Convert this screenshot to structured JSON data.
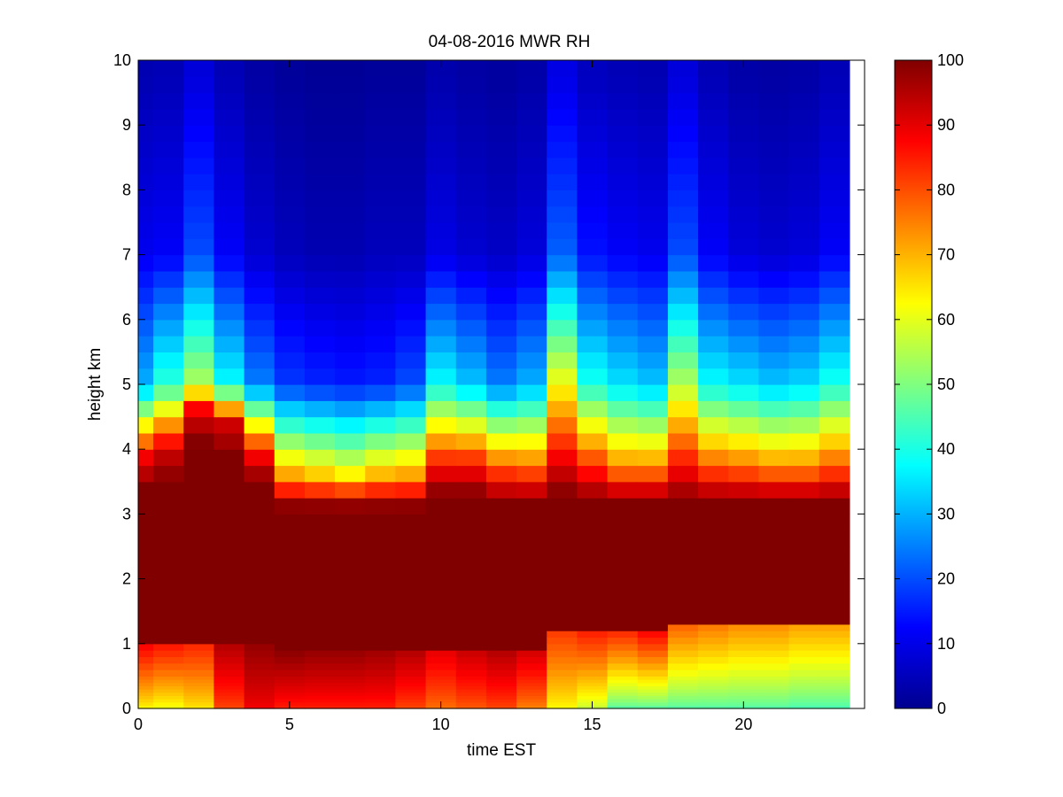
{
  "chart_data": [
    {
      "type": "heatmap",
      "title": "04-08-2016 MWR RH",
      "xlabel": "time EST",
      "ylabel": "height km",
      "xlim": [
        0,
        24
      ],
      "ylim": [
        0,
        10
      ],
      "x_ticks": [
        "0",
        "5",
        "10",
        "15",
        "20"
      ],
      "y_ticks": [
        "0",
        "1",
        "2",
        "3",
        "4",
        "5",
        "6",
        "7",
        "8",
        "9",
        "10"
      ],
      "x_centers": [
        0,
        1,
        2,
        3,
        4,
        5,
        6,
        7,
        8,
        9,
        10,
        11,
        12,
        13,
        14,
        15,
        16,
        17,
        18,
        19,
        20,
        21,
        22,
        23
      ],
      "x_data_max": 23.5,
      "heights_km": [
        0,
        0.05,
        0.1,
        0.15,
        0.2,
        0.25,
        0.3,
        0.35,
        0.4,
        0.45,
        0.5,
        0.6,
        0.7,
        0.8,
        0.9,
        1.0,
        1.1,
        1.2,
        1.3,
        1.4,
        1.5,
        1.6,
        1.7,
        1.8,
        1.9,
        2.0,
        2.25,
        2.5,
        2.75,
        3.0,
        3.25,
        3.5,
        3.75,
        4.0,
        4.25,
        4.5,
        4.75,
        5.0,
        5.25,
        5.5,
        5.75,
        6.0,
        6.25,
        6.5,
        6.75,
        7.0,
        7.25,
        7.5,
        7.75,
        8.0,
        8.25,
        8.5,
        8.75,
        9.0,
        9.25,
        9.5,
        9.75
      ],
      "rh_profiles": [
        {
          "time": 0,
          "sfc": 62,
          "low": 88,
          "bottom": 1.0,
          "top": 3.4,
          "above": 88,
          "p50": 30,
          "p70": 11
        },
        {
          "time": 1,
          "sfc": 60,
          "low": 86,
          "bottom": 1.0,
          "top": 3.5,
          "above": 92,
          "p50": 42,
          "p70": 12
        },
        {
          "time": 2,
          "sfc": 64,
          "low": 84,
          "bottom": 1.0,
          "top": 4.1,
          "above": 90,
          "p50": 55,
          "p70": 20
        },
        {
          "time": 3,
          "sfc": 80,
          "low": 95,
          "bottom": 1.0,
          "top": 3.9,
          "above": 92,
          "p50": 38,
          "p70": 12
        },
        {
          "time": 4,
          "sfc": 88,
          "low": 98,
          "bottom": 1.0,
          "top": 3.5,
          "above": 85,
          "p50": 25,
          "p70": 8
        },
        {
          "time": 5,
          "sfc": 84,
          "low": 99,
          "bottom": 0.9,
          "top": 3.1,
          "above": 72,
          "p50": 18,
          "p70": 6
        },
        {
          "time": 6,
          "sfc": 84,
          "low": 98,
          "bottom": 0.9,
          "top": 3.1,
          "above": 68,
          "p50": 16,
          "p70": 5
        },
        {
          "time": 7,
          "sfc": 84,
          "low": 98,
          "bottom": 0.9,
          "top": 3.1,
          "above": 64,
          "p50": 15,
          "p70": 5
        },
        {
          "time": 8,
          "sfc": 84,
          "low": 97,
          "bottom": 0.9,
          "top": 3.1,
          "above": 70,
          "p50": 16,
          "p70": 6
        },
        {
          "time": 9,
          "sfc": 80,
          "low": 95,
          "bottom": 0.9,
          "top": 3.1,
          "above": 72,
          "p50": 20,
          "p70": 6
        },
        {
          "time": 10,
          "sfc": 76,
          "low": 90,
          "bottom": 0.9,
          "top": 3.3,
          "above": 85,
          "p50": 38,
          "p70": 10
        },
        {
          "time": 11,
          "sfc": 78,
          "low": 93,
          "bottom": 0.9,
          "top": 3.3,
          "above": 85,
          "p50": 32,
          "p70": 8
        },
        {
          "time": 12,
          "sfc": 80,
          "low": 95,
          "bottom": 0.9,
          "top": 3.2,
          "above": 80,
          "p50": 25,
          "p70": 7
        },
        {
          "time": 13,
          "sfc": 74,
          "low": 92,
          "bottom": 0.9,
          "top": 3.2,
          "above": 78,
          "p50": 30,
          "p70": 9
        },
        {
          "time": 14,
          "sfc": 62,
          "low": 82,
          "bottom": 1.2,
          "top": 3.3,
          "above": 90,
          "p50": 62,
          "p70": 22
        },
        {
          "time": 15,
          "sfc": 56,
          "low": 85,
          "bottom": 1.2,
          "top": 3.2,
          "above": 85,
          "p50": 40,
          "p70": 14
        },
        {
          "time": 16,
          "sfc": 45,
          "low": 84,
          "bottom": 1.2,
          "top": 3.2,
          "above": 75,
          "p50": 35,
          "p70": 12
        },
        {
          "time": 17,
          "sfc": 45,
          "low": 88,
          "bottom": 1.2,
          "top": 3.2,
          "above": 75,
          "p50": 32,
          "p70": 11
        },
        {
          "time": 18,
          "sfc": 45,
          "low": 78,
          "bottom": 1.3,
          "top": 3.2,
          "above": 88,
          "p50": 55,
          "p70": 20
        },
        {
          "time": 19,
          "sfc": 45,
          "low": 76,
          "bottom": 1.3,
          "top": 3.2,
          "above": 80,
          "p50": 38,
          "p70": 12
        },
        {
          "time": 20,
          "sfc": 45,
          "low": 74,
          "bottom": 1.3,
          "top": 3.2,
          "above": 78,
          "p50": 35,
          "p70": 9
        },
        {
          "time": 21,
          "sfc": 45,
          "low": 74,
          "bottom": 1.3,
          "top": 3.2,
          "above": 75,
          "p50": 32,
          "p70": 8
        },
        {
          "time": 22,
          "sfc": 44,
          "low": 72,
          "bottom": 1.3,
          "top": 3.2,
          "above": 75,
          "p50": 34,
          "p70": 9
        },
        {
          "time": 23,
          "sfc": 44,
          "low": 72,
          "bottom": 1.3,
          "top": 3.2,
          "above": 80,
          "p50": 40,
          "p70": 12
        }
      ],
      "colorbar": {
        "colormap": "jet",
        "range": [
          0,
          100
        ],
        "ticks": [
          "0",
          "10",
          "20",
          "30",
          "40",
          "50",
          "60",
          "70",
          "80",
          "90",
          "100"
        ]
      }
    }
  ]
}
